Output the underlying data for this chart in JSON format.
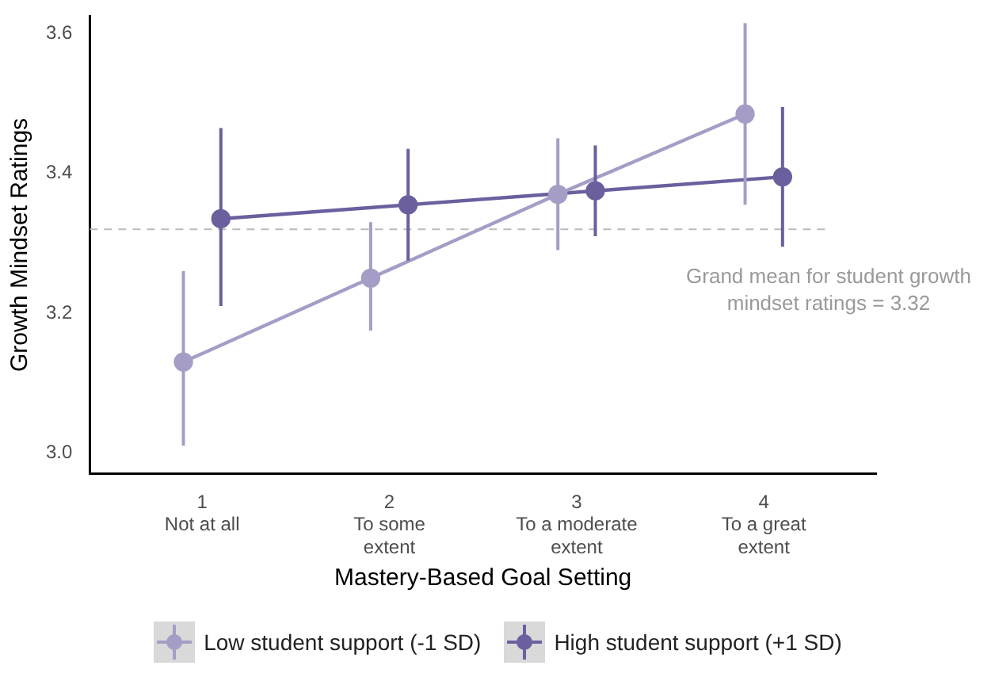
{
  "chart_data": {
    "type": "line",
    "xlabel": "Mastery-Based Goal Setting",
    "ylabel": "Growth Mindset Ratings",
    "categories": [
      "1\nNot at all",
      "2\nTo some\nextent",
      "3\nTo a moderate\nextent",
      "4\nTo a great\nextent"
    ],
    "series": [
      {
        "name": "Low student support (-1 SD)",
        "color": "#a59dc6",
        "values": [
          3.13,
          3.25,
          3.37,
          3.485
        ],
        "errors": [
          [
            3.01,
            3.26
          ],
          [
            3.175,
            3.33
          ],
          [
            3.29,
            3.45
          ],
          [
            3.355,
            3.615
          ]
        ]
      },
      {
        "name": "High student support (+1 SD)",
        "color": "#6c5f9e",
        "values": [
          3.335,
          3.355,
          3.375,
          3.395
        ],
        "errors": [
          [
            3.21,
            3.465
          ],
          [
            3.275,
            3.435
          ],
          [
            3.31,
            3.44
          ],
          [
            3.295,
            3.495
          ]
        ]
      }
    ],
    "ylim": [
      2.97,
      3.625
    ],
    "yticks": [
      {
        "value": 3,
        "label": "3.0"
      },
      {
        "value": 3.2,
        "label": "3.2"
      },
      {
        "value": 3.4,
        "label": "3.4"
      },
      {
        "value": 3.6,
        "label": "3.6"
      }
    ],
    "ref_lines": [
      {
        "axis": "y",
        "value": 3.32,
        "label": "Grand mean for student growth mindset ratings = 3.32",
        "color": "#bbbbbb",
        "line_style": "dashed"
      }
    ],
    "grid": false,
    "legend": "bottom",
    "marker": "circle",
    "line_style": "solid"
  }
}
